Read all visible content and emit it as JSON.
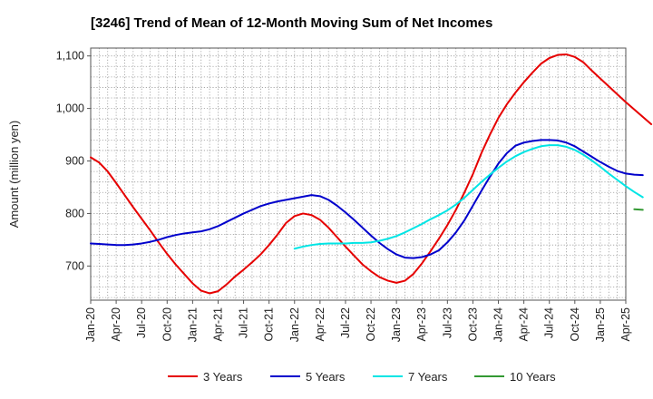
{
  "chart_data": {
    "type": "line",
    "title": "[3246]  Trend of Mean of 12-Month Moving Sum of Net Incomes",
    "ylabel": "Amount (million yen)",
    "xlabel": "",
    "ylim": [
      635,
      1115
    ],
    "yticks": [
      700,
      800,
      900,
      1000,
      1100
    ],
    "ytick_labels": [
      "700",
      "800",
      "900",
      "1,000",
      "1,100"
    ],
    "xticks": [
      "Jan-20",
      "Apr-20",
      "Jul-20",
      "Oct-20",
      "Jan-21",
      "Apr-21",
      "Jul-21",
      "Oct-21",
      "Jan-22",
      "Apr-22",
      "Jul-22",
      "Oct-22",
      "Jan-23",
      "Apr-23",
      "Jul-23",
      "Oct-23",
      "Jan-24",
      "Apr-24",
      "Jul-24",
      "Oct-24",
      "Jan-25",
      "Apr-25"
    ],
    "grid": true,
    "legend_position": "bottom",
    "series": [
      {
        "name": "3 Years",
        "color": "#e60000",
        "points": [
          [
            0,
            907
          ],
          [
            1,
            897
          ],
          [
            2,
            880
          ],
          [
            3,
            858
          ],
          [
            4,
            835
          ],
          [
            5,
            812
          ],
          [
            6,
            790
          ],
          [
            7,
            768
          ],
          [
            8,
            745
          ],
          [
            9,
            723
          ],
          [
            10,
            703
          ],
          [
            11,
            685
          ],
          [
            12,
            667
          ],
          [
            13,
            653
          ],
          [
            14,
            648
          ],
          [
            15,
            652
          ],
          [
            16,
            665
          ],
          [
            17,
            680
          ],
          [
            18,
            693
          ],
          [
            19,
            707
          ],
          [
            20,
            722
          ],
          [
            21,
            740
          ],
          [
            22,
            760
          ],
          [
            23,
            782
          ],
          [
            24,
            795
          ],
          [
            25,
            800
          ],
          [
            26,
            797
          ],
          [
            27,
            788
          ],
          [
            28,
            773
          ],
          [
            29,
            755
          ],
          [
            30,
            737
          ],
          [
            31,
            720
          ],
          [
            32,
            703
          ],
          [
            33,
            690
          ],
          [
            34,
            679
          ],
          [
            35,
            672
          ],
          [
            36,
            668
          ],
          [
            37,
            672
          ],
          [
            38,
            685
          ],
          [
            39,
            705
          ],
          [
            40,
            728
          ],
          [
            41,
            752
          ],
          [
            42,
            778
          ],
          [
            43,
            807
          ],
          [
            44,
            840
          ],
          [
            45,
            875
          ],
          [
            46,
            915
          ],
          [
            47,
            950
          ],
          [
            48,
            982
          ],
          [
            49,
            1008
          ],
          [
            50,
            1030
          ],
          [
            51,
            1050
          ],
          [
            52,
            1068
          ],
          [
            53,
            1085
          ],
          [
            54,
            1096
          ],
          [
            55,
            1102
          ],
          [
            56,
            1103
          ],
          [
            57,
            1098
          ],
          [
            58,
            1088
          ],
          [
            59,
            1072
          ],
          [
            60,
            1057
          ],
          [
            61,
            1042
          ],
          [
            62,
            1027
          ],
          [
            63,
            1012
          ],
          [
            64,
            998
          ],
          [
            65,
            984
          ],
          [
            66,
            970
          ]
        ]
      },
      {
        "name": "5 Years",
        "color": "#0000cc",
        "points": [
          [
            0,
            743
          ],
          [
            1,
            742
          ],
          [
            2,
            741
          ],
          [
            3,
            740
          ],
          [
            4,
            740
          ],
          [
            5,
            741
          ],
          [
            6,
            743
          ],
          [
            7,
            746
          ],
          [
            8,
            750
          ],
          [
            9,
            755
          ],
          [
            10,
            759
          ],
          [
            11,
            762
          ],
          [
            12,
            764
          ],
          [
            13,
            766
          ],
          [
            14,
            770
          ],
          [
            15,
            776
          ],
          [
            16,
            784
          ],
          [
            17,
            792
          ],
          [
            18,
            800
          ],
          [
            19,
            807
          ],
          [
            20,
            814
          ],
          [
            21,
            819
          ],
          [
            22,
            823
          ],
          [
            23,
            826
          ],
          [
            24,
            829
          ],
          [
            25,
            832
          ],
          [
            26,
            835
          ],
          [
            27,
            833
          ],
          [
            28,
            826
          ],
          [
            29,
            815
          ],
          [
            30,
            802
          ],
          [
            31,
            788
          ],
          [
            32,
            773
          ],
          [
            33,
            758
          ],
          [
            34,
            744
          ],
          [
            35,
            732
          ],
          [
            36,
            722
          ],
          [
            37,
            716
          ],
          [
            38,
            715
          ],
          [
            39,
            717
          ],
          [
            40,
            722
          ],
          [
            41,
            730
          ],
          [
            42,
            745
          ],
          [
            43,
            764
          ],
          [
            44,
            787
          ],
          [
            45,
            815
          ],
          [
            46,
            843
          ],
          [
            47,
            870
          ],
          [
            48,
            895
          ],
          [
            49,
            915
          ],
          [
            50,
            929
          ],
          [
            51,
            935
          ],
          [
            52,
            938
          ],
          [
            53,
            940
          ],
          [
            54,
            940
          ],
          [
            55,
            939
          ],
          [
            56,
            935
          ],
          [
            57,
            928
          ],
          [
            58,
            918
          ],
          [
            59,
            908
          ],
          [
            60,
            898
          ],
          [
            61,
            889
          ],
          [
            62,
            881
          ],
          [
            63,
            876
          ],
          [
            64,
            874
          ],
          [
            65,
            873
          ]
        ]
      },
      {
        "name": "7 Years",
        "color": "#00e5e5",
        "points": [
          [
            24,
            733
          ],
          [
            25,
            737
          ],
          [
            26,
            740
          ],
          [
            27,
            742
          ],
          [
            28,
            743
          ],
          [
            29,
            743
          ],
          [
            30,
            743
          ],
          [
            31,
            744
          ],
          [
            32,
            744
          ],
          [
            33,
            745
          ],
          [
            34,
            748
          ],
          [
            35,
            752
          ],
          [
            36,
            757
          ],
          [
            37,
            764
          ],
          [
            38,
            772
          ],
          [
            39,
            780
          ],
          [
            40,
            789
          ],
          [
            41,
            797
          ],
          [
            42,
            806
          ],
          [
            43,
            817
          ],
          [
            44,
            830
          ],
          [
            45,
            845
          ],
          [
            46,
            860
          ],
          [
            47,
            874
          ],
          [
            48,
            887
          ],
          [
            49,
            899
          ],
          [
            50,
            909
          ],
          [
            51,
            917
          ],
          [
            52,
            923
          ],
          [
            53,
            928
          ],
          [
            54,
            930
          ],
          [
            55,
            930
          ],
          [
            56,
            927
          ],
          [
            57,
            921
          ],
          [
            58,
            912
          ],
          [
            59,
            901
          ],
          [
            60,
            889
          ],
          [
            61,
            876
          ],
          [
            62,
            864
          ],
          [
            63,
            852
          ],
          [
            64,
            841
          ],
          [
            65,
            831
          ]
        ]
      },
      {
        "name": "10 Years",
        "color": "#339933",
        "points": [
          [
            64,
            808
          ],
          [
            65,
            807
          ]
        ]
      }
    ]
  }
}
